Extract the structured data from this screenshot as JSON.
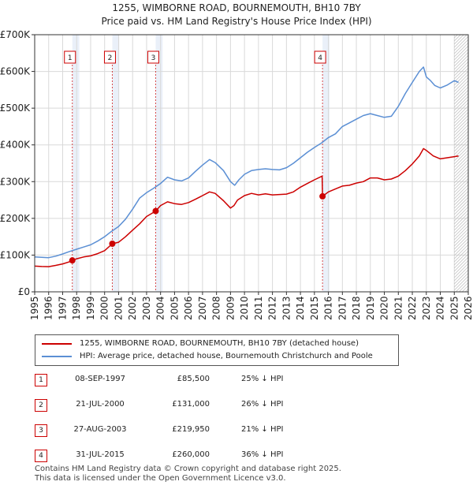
{
  "title": {
    "line1": "1255, WIMBORNE ROAD, BOURNEMOUTH, BH10 7BY",
    "line2": "Price paid vs. HM Land Registry's House Price Index (HPI)"
  },
  "colors": {
    "property": "#cc0000",
    "hpi": "#5b8fd4",
    "band": "#dce6f5",
    "grid": "#d9d9d9"
  },
  "chart_data": {
    "type": "line",
    "xlim": [
      1995,
      2026
    ],
    "ylim": [
      0,
      700000
    ],
    "y_ticks": [
      0,
      100000,
      200000,
      300000,
      400000,
      500000,
      600000,
      700000
    ],
    "y_tick_labels": [
      "£0",
      "£100K",
      "£200K",
      "£300K",
      "£400K",
      "£500K",
      "£600K",
      "£700K"
    ],
    "x_ticks": [
      1995,
      1996,
      1997,
      1998,
      1999,
      2000,
      2001,
      2002,
      2003,
      2004,
      2005,
      2006,
      2007,
      2008,
      2009,
      2010,
      2011,
      2012,
      2013,
      2014,
      2015,
      2016,
      2017,
      2018,
      2019,
      2020,
      2021,
      2022,
      2023,
      2024,
      2025,
      2026
    ],
    "x_tick_labels": [
      "1995",
      "1996",
      "1997",
      "1998",
      "1999",
      "2000",
      "2001",
      "2002",
      "2003",
      "2004",
      "2005",
      "2006",
      "2007",
      "2008",
      "2009",
      "2010",
      "2011",
      "2012",
      "2013",
      "2014",
      "2015",
      "2016",
      "2017",
      "2018",
      "2019",
      "2020",
      "2021",
      "2022",
      "2023",
      "2024",
      "2025",
      "2026"
    ],
    "series": [
      {
        "name": "1255, WIMBORNE ROAD, BOURNEMOUTH, BH10 7BY (detached house)",
        "color": "#cc0000",
        "x": [
          1995.0,
          1995.5,
          1996.0,
          1996.5,
          1997.0,
          1997.5,
          1997.69,
          1998.0,
          1998.5,
          1999.0,
          1999.5,
          2000.0,
          2000.55,
          2001.0,
          2001.5,
          2002.0,
          2002.5,
          2003.0,
          2003.65,
          2004.0,
          2004.5,
          2005.0,
          2005.5,
          2006.0,
          2006.5,
          2007.0,
          2007.5,
          2007.9,
          2008.5,
          2009.0,
          2009.25,
          2009.5,
          2010.0,
          2010.5,
          2011.0,
          2011.5,
          2012.0,
          2012.5,
          2013.0,
          2013.5,
          2014.0,
          2014.5,
          2015.0,
          2015.55,
          2015.58,
          2016.0,
          2016.5,
          2017.0,
          2017.5,
          2018.0,
          2018.5,
          2019.0,
          2019.5,
          2020.0,
          2020.5,
          2021.0,
          2021.5,
          2022.0,
          2022.5,
          2022.8,
          2023.0,
          2023.5,
          2024.0,
          2024.5,
          2025.0,
          2025.3
        ],
        "values": [
          70000,
          69000,
          68500,
          72000,
          76000,
          82000,
          85500,
          90000,
          95000,
          98000,
          104000,
          112000,
          131000,
          135000,
          150000,
          168000,
          185000,
          205000,
          219950,
          235000,
          245000,
          240000,
          238000,
          243000,
          252000,
          262000,
          272000,
          268000,
          248000,
          228000,
          235000,
          250000,
          262000,
          268000,
          264000,
          267000,
          264000,
          265000,
          266000,
          272000,
          285000,
          295000,
          305000,
          315000,
          260000,
          272000,
          280000,
          288000,
          290000,
          296000,
          300000,
          310000,
          310000,
          305000,
          307000,
          315000,
          330000,
          348000,
          370000,
          390000,
          385000,
          370000,
          362000,
          365000,
          368000,
          370000
        ]
      },
      {
        "name": "HPI: Average price, detached house, Bournemouth Christchurch and Poole",
        "color": "#5b8fd4",
        "x": [
          1995.0,
          1995.5,
          1996.0,
          1996.5,
          1997.0,
          1997.5,
          1998.0,
          1998.5,
          1999.0,
          1999.5,
          2000.0,
          2000.5,
          2001.0,
          2001.5,
          2002.0,
          2002.5,
          2003.0,
          2003.5,
          2004.0,
          2004.5,
          2005.0,
          2005.5,
          2006.0,
          2006.5,
          2007.0,
          2007.5,
          2007.9,
          2008.5,
          2009.0,
          2009.3,
          2009.6,
          2010.0,
          2010.5,
          2011.0,
          2011.5,
          2012.0,
          2012.5,
          2013.0,
          2013.5,
          2014.0,
          2014.5,
          2015.0,
          2015.5,
          2016.0,
          2016.5,
          2017.0,
          2017.5,
          2018.0,
          2018.5,
          2019.0,
          2019.5,
          2020.0,
          2020.5,
          2021.0,
          2021.5,
          2022.0,
          2022.5,
          2022.8,
          2023.0,
          2023.3,
          2023.6,
          2024.0,
          2024.5,
          2025.0,
          2025.3
        ],
        "values": [
          95000,
          94000,
          93000,
          97000,
          103000,
          110000,
          116000,
          122000,
          128000,
          138000,
          150000,
          165000,
          178000,
          198000,
          225000,
          255000,
          270000,
          282000,
          295000,
          312000,
          305000,
          302000,
          310000,
          328000,
          345000,
          360000,
          352000,
          330000,
          300000,
          290000,
          305000,
          320000,
          330000,
          333000,
          335000,
          333000,
          332000,
          338000,
          350000,
          365000,
          380000,
          393000,
          405000,
          420000,
          430000,
          450000,
          460000,
          470000,
          480000,
          485000,
          480000,
          475000,
          478000,
          505000,
          540000,
          570000,
          600000,
          612000,
          585000,
          575000,
          562000,
          555000,
          563000,
          575000,
          570000
        ]
      }
    ],
    "sales": [
      {
        "label": "1",
        "x": 1997.69,
        "value": 85500
      },
      {
        "label": "2",
        "x": 2000.55,
        "value": 131000
      },
      {
        "label": "3",
        "x": 2003.65,
        "value": 219950
      },
      {
        "label": "4",
        "x": 2015.58,
        "value": 260000
      }
    ],
    "forecast_from": 2025.0
  },
  "legend": {
    "property": "1255, WIMBORNE ROAD, BOURNEMOUTH, BH10 7BY (detached house)",
    "hpi": "HPI: Average price, detached house, Bournemouth Christchurch and Poole"
  },
  "transactions": [
    {
      "num": "1",
      "date": "08-SEP-1997",
      "price": "£85,500",
      "hpi": "25% ↓ HPI"
    },
    {
      "num": "2",
      "date": "21-JUL-2000",
      "price": "£131,000",
      "hpi": "26% ↓ HPI"
    },
    {
      "num": "3",
      "date": "27-AUG-2003",
      "price": "£219,950",
      "hpi": "21% ↓ HPI"
    },
    {
      "num": "4",
      "date": "31-JUL-2015",
      "price": "£260,000",
      "hpi": "36% ↓ HPI"
    }
  ],
  "footer": {
    "line1": "Contains HM Land Registry data © Crown copyright and database right 2025.",
    "line2": "This data is licensed under the Open Government Licence v3.0."
  }
}
